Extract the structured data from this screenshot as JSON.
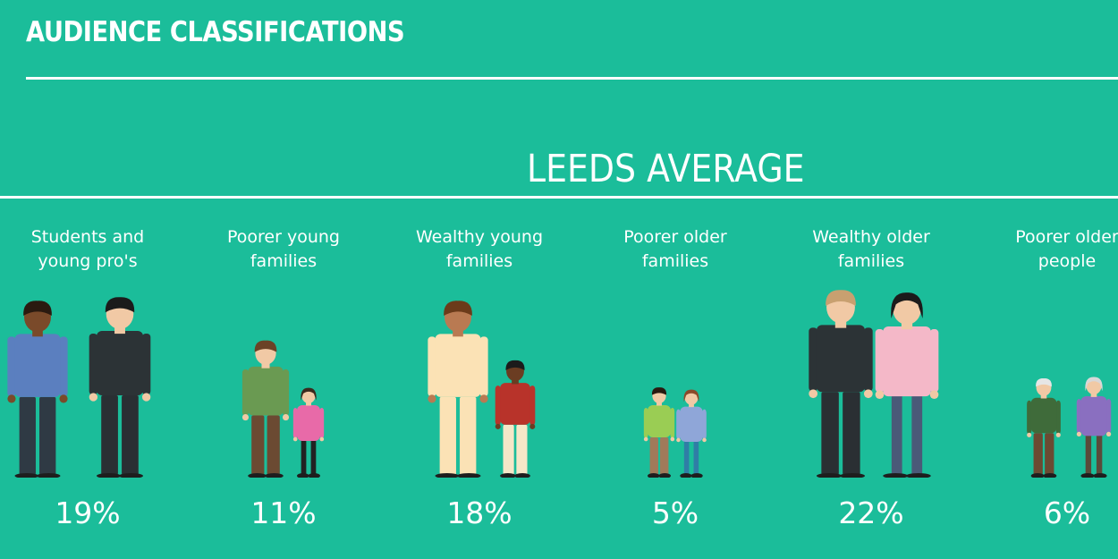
{
  "header": {
    "title": "AUDIENCE CLASSIFICATIONS"
  },
  "chart_data": {
    "type": "table",
    "title": "LEEDS AVERAGE",
    "categories": [
      "Students and young pro's",
      "Poorer young families",
      "Wealthy young families",
      "Poorer older families",
      "Wealthy older families",
      "Poorer older people"
    ],
    "values": [
      19,
      11,
      18,
      5,
      22,
      6
    ],
    "labels": [
      "19%",
      "11%",
      "18%",
      "5%",
      "22%",
      "6%"
    ],
    "label_lines": [
      [
        "Students and",
        "young pro's"
      ],
      [
        "Poorer young",
        "families"
      ],
      [
        "Wealthy young",
        "families"
      ],
      [
        "Poorer older",
        "families"
      ],
      [
        "Wealthy older",
        "families"
      ],
      [
        "Poorer older",
        "people"
      ]
    ],
    "icons": [
      [
        "student-icon",
        "young-professional-icon"
      ],
      [
        "father-icon",
        "girl-icon"
      ],
      [
        "father-icon",
        "boy-icon"
      ],
      [
        "father-icon",
        "mother-icon"
      ],
      [
        "businessman-icon",
        "businesswoman-icon"
      ],
      [
        "elderly-man-icon",
        "elderly-woman-icon"
      ]
    ],
    "colors": {
      "background": "#1bbd9a",
      "text": "#ffffff"
    }
  }
}
